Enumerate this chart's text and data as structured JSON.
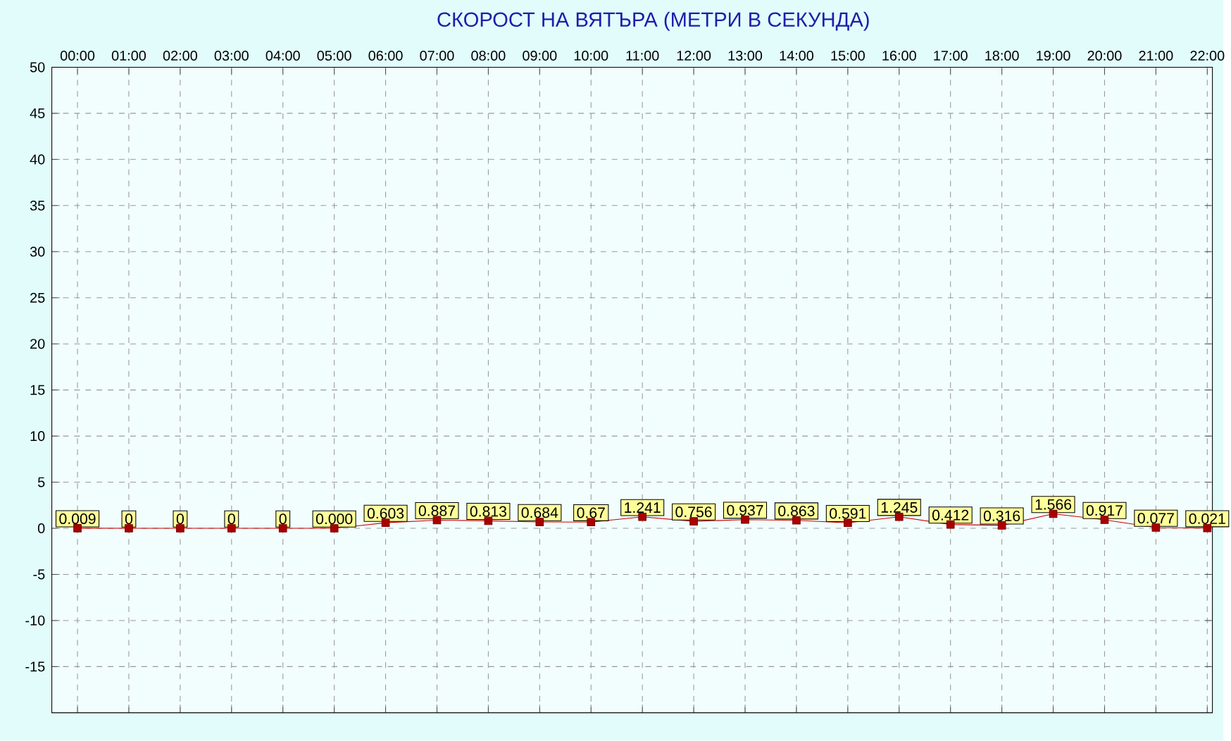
{
  "chart_data": {
    "type": "line",
    "title": "СКОРОСТ НА ВЯТЪРА (МЕТРИ В СЕКУНДА)",
    "categories": [
      "00:00",
      "01:00",
      "02:00",
      "03:00",
      "04:00",
      "05:00",
      "06:00",
      "07:00",
      "08:00",
      "09:00",
      "10:00",
      "11:00",
      "12:00",
      "13:00",
      "14:00",
      "15:00",
      "16:00",
      "17:00",
      "18:00",
      "19:00",
      "20:00",
      "21:00",
      "22:00"
    ],
    "values": [
      0.009,
      0,
      0,
      0,
      0,
      0.0,
      0.603,
      0.887,
      0.813,
      0.684,
      0.67,
      1.241,
      0.756,
      0.937,
      0.863,
      0.591,
      1.245,
      0.412,
      0.316,
      1.566,
      0.917,
      0.077,
      0.021
    ],
    "value_labels": [
      "0.009",
      "0",
      "0",
      "0",
      "0",
      "0.000",
      "0.603",
      "0.887",
      "0.813",
      "0.684",
      "0.67",
      "1.241",
      "0.756",
      "0.937",
      "0.863",
      "0.591",
      "1.245",
      "0.412",
      "0.316",
      "1.566",
      "0.917",
      "0.077",
      "0.021"
    ],
    "color": "#cc0000",
    "ylim": [
      -20,
      50
    ],
    "yticks": [
      -15,
      -10,
      -5,
      0,
      5,
      10,
      15,
      20,
      25,
      30,
      35,
      40,
      45,
      50
    ],
    "grid": true,
    "marker": "square"
  }
}
